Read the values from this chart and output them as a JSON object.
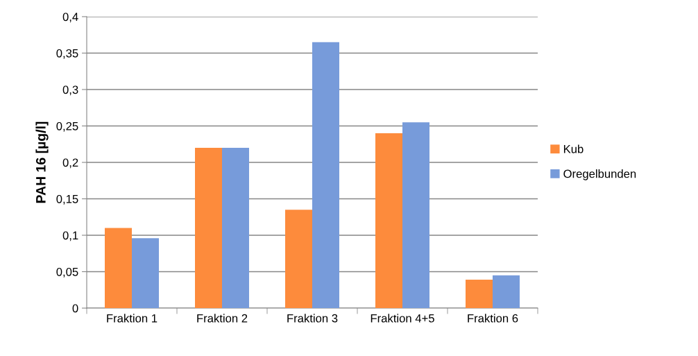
{
  "chart_data": {
    "type": "bar",
    "ylabel": "PAH 16 [µg/l]",
    "categories": [
      "Fraktion 1",
      "Fraktion 2",
      "Fraktion 3",
      "Fraktion 4+5",
      "Fraktion 6"
    ],
    "series": [
      {
        "name": "Kub",
        "color": "#fd8b3c",
        "values": [
          0.11,
          0.22,
          0.135,
          0.24,
          0.039
        ]
      },
      {
        "name": "Oregelbunden",
        "color": "#779bda",
        "values": [
          0.096,
          0.22,
          0.365,
          0.255,
          0.045
        ]
      }
    ],
    "ylim": [
      0,
      0.4
    ],
    "yticks": [
      {
        "value": 0,
        "label": "0"
      },
      {
        "value": 0.05,
        "label": "0,05"
      },
      {
        "value": 0.1,
        "label": "0,1"
      },
      {
        "value": 0.15,
        "label": "0,15"
      },
      {
        "value": 0.2,
        "label": "0,2"
      },
      {
        "value": 0.25,
        "label": "0,25"
      },
      {
        "value": 0.3,
        "label": "0,3"
      },
      {
        "value": 0.35,
        "label": "0,35"
      },
      {
        "value": 0.4,
        "label": "0,4"
      }
    ],
    "grid": "y",
    "legend": "right"
  }
}
